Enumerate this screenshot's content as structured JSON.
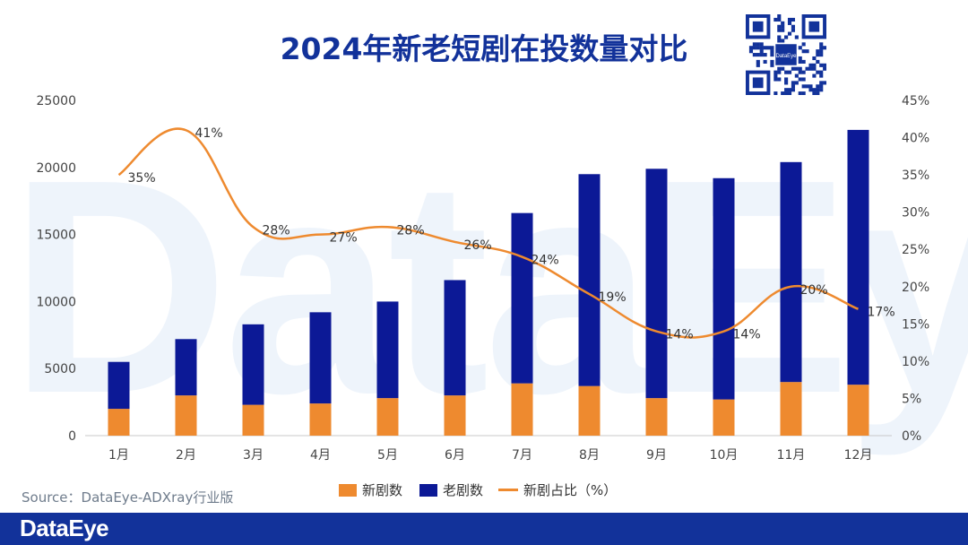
{
  "title": "2024年新老短剧在投数量对比",
  "watermark_text": "DataEye",
  "source": "Source：DataEye-ADXray行业版",
  "brand": "DataEye",
  "qr_label": "DataEye",
  "colors": {
    "new": "#ee8a2f",
    "old": "#0c1996",
    "line": "#ee8a2f",
    "title": "#12329a",
    "footer": "#12329a"
  },
  "chart_data": {
    "type": "bar",
    "stacked": true,
    "categories": [
      "1月",
      "2月",
      "3月",
      "4月",
      "5月",
      "6月",
      "7月",
      "8月",
      "9月",
      "10月",
      "11月",
      "12月"
    ],
    "series": [
      {
        "name": "新剧数",
        "values": [
          2000,
          3000,
          2300,
          2400,
          2800,
          3000,
          3900,
          3700,
          2800,
          2700,
          4000,
          3800
        ]
      },
      {
        "name": "老剧数",
        "values": [
          3500,
          4200,
          6000,
          6800,
          7200,
          8600,
          12700,
          15800,
          17100,
          16500,
          16400,
          19000
        ]
      }
    ],
    "line": {
      "name": "新剧占比（%）",
      "values": [
        35,
        41,
        28,
        27,
        28,
        26,
        24,
        19,
        14,
        14,
        20,
        17
      ],
      "labels": [
        "35%",
        "41%",
        "28%",
        "27%",
        "28%",
        "26%",
        "24%",
        "19%",
        "14%",
        "14%",
        "20%",
        "17%"
      ]
    },
    "ylim_left": [
      0,
      25000
    ],
    "yticks_left": [
      "0",
      "5000",
      "10000",
      "15000",
      "20000",
      "25000"
    ],
    "ylim_right": [
      0,
      45
    ],
    "yticks_right": [
      "0%",
      "5%",
      "10%",
      "15%",
      "20%",
      "25%",
      "30%",
      "35%",
      "40%",
      "45%"
    ]
  }
}
